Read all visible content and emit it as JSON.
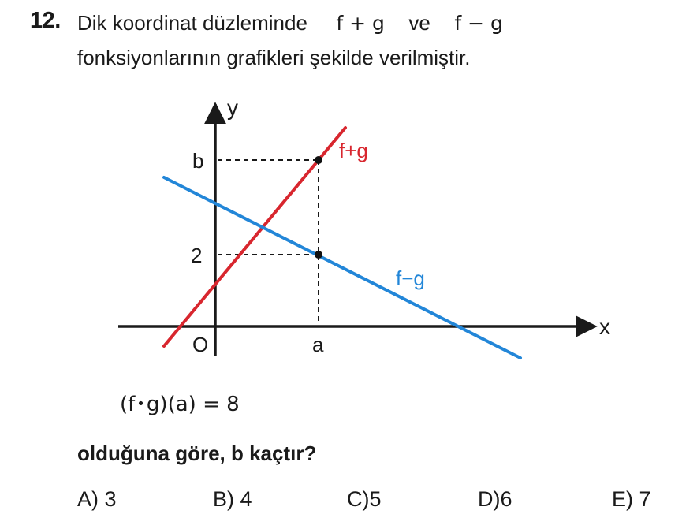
{
  "question": {
    "number": "12.",
    "line1_text": "Dik koordinat düzleminde",
    "line1_expr1": "f + g",
    "line1_conj": "ve",
    "line1_expr2": "f − g",
    "line2_text": "fonksiyonlarının grafikleri şekilde verilmiştir.",
    "condition_lhs_open": "(f",
    "condition_dot": "•",
    "condition_lhs_close": "g)(a)",
    "condition_eq": "=",
    "condition_rhs": "8",
    "ask_text": "olduğuna göre,  b  kaçtır?",
    "options": [
      {
        "letter": "A)",
        "value": "3"
      },
      {
        "letter": "B)",
        "value": "4"
      },
      {
        "letter": "C)",
        "value": "5"
      },
      {
        "letter": "D)",
        "value": "6"
      },
      {
        "letter": "E)",
        "value": "7"
      }
    ]
  },
  "graph": {
    "axis_x_label": "x",
    "axis_y_label": "y",
    "origin_label": "O",
    "tick_y_b": "b",
    "tick_y_2": "2",
    "tick_x_a": "a",
    "line_fg_sum_label": "f+g",
    "line_fg_diff_label": "f−g",
    "line_fg_sum_color": "#d8262e",
    "line_fg_diff_color": "#2286d8",
    "axis_color": "#1a1a1a"
  }
}
